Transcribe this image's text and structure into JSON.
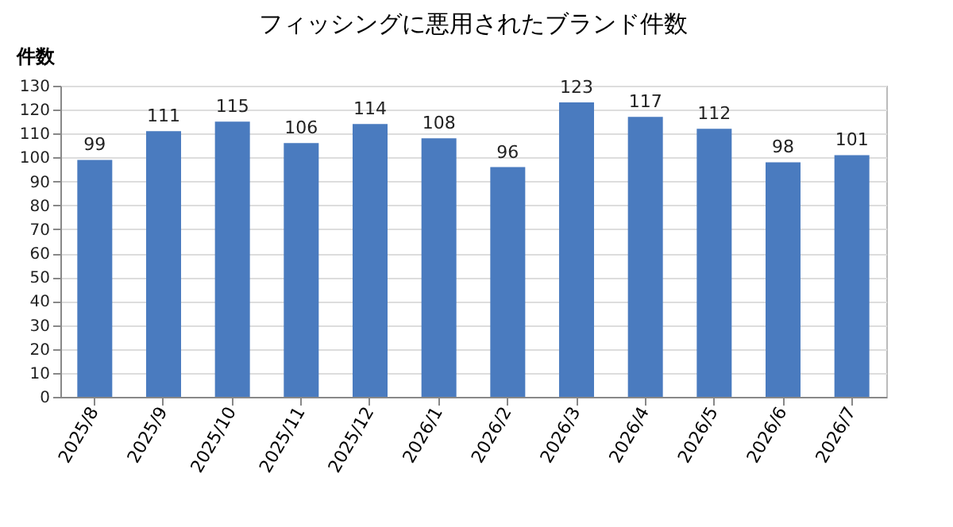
{
  "chart_data": {
    "type": "bar",
    "title": "フィッシングに悪用されたブランド件数",
    "ylabel": "件数",
    "categories": [
      "2025/8",
      "2025/9",
      "2025/10",
      "2025/11",
      "2025/12",
      "2026/1",
      "2026/2",
      "2026/3",
      "2026/4",
      "2026/5",
      "2026/6",
      "2026/7"
    ],
    "values": [
      99,
      111,
      115,
      106,
      114,
      108,
      96,
      123,
      117,
      112,
      98,
      101
    ],
    "color": "#4a7bbf",
    "ylim": [
      0,
      130
    ],
    "yticks": [
      0,
      10,
      20,
      30,
      40,
      50,
      60,
      70,
      80,
      90,
      100,
      110,
      120,
      130
    ],
    "grid": "y",
    "data_labels": true
  }
}
